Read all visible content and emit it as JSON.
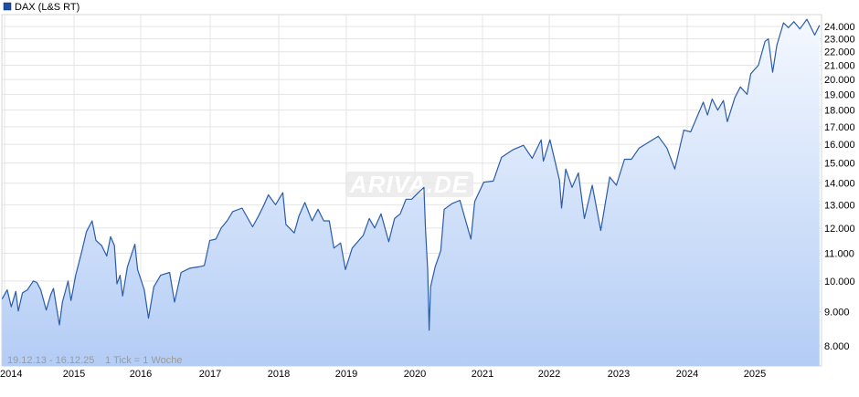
{
  "chart_data": {
    "type": "area",
    "legend": {
      "label": "DAX (L&S RT)",
      "color": "#1f4e9e",
      "placement": "top-left"
    },
    "watermark": "ARIVA.DE",
    "period_text": "19.12.13 - 16.12.25",
    "tick_text": "1 Tick = 1 Woche",
    "x_tick_labels": [
      "2014",
      "2015",
      "2016",
      "2017",
      "2018",
      "2019",
      "2020",
      "2021",
      "2022",
      "2023",
      "2024",
      "2025"
    ],
    "y_tick_labels": [
      "8.000",
      "9.000",
      "10.000",
      "11.000",
      "12.000",
      "13.000",
      "14.000",
      "15.000",
      "16.000",
      "17.000",
      "18.000",
      "19.000",
      "20.000",
      "21.000",
      "22.000",
      "23.000",
      "24.000"
    ],
    "y_scale": "log",
    "ylim": [
      7700,
      24800
    ],
    "xlim": [
      "2013-12-19",
      "2025-12-16"
    ],
    "grid": true,
    "colors": {
      "line": "#2a5caa",
      "area_top": "#f4f8ff",
      "area_bottom": "#b4cdf5",
      "grid": "#e4e4e4"
    },
    "series": [
      {
        "name": "DAX (L&S RT)",
        "points": [
          [
            "2013-12-19",
            9400
          ],
          [
            "2014-01-15",
            9700
          ],
          [
            "2014-02-05",
            9150
          ],
          [
            "2014-03-01",
            9650
          ],
          [
            "2014-03-14",
            9020
          ],
          [
            "2014-04-05",
            9600
          ],
          [
            "2014-05-01",
            9700
          ],
          [
            "2014-06-01",
            10000
          ],
          [
            "2014-06-20",
            9950
          ],
          [
            "2014-07-10",
            9700
          ],
          [
            "2014-08-08",
            9050
          ],
          [
            "2014-09-01",
            9550
          ],
          [
            "2014-09-15",
            9750
          ],
          [
            "2014-10-16",
            8600
          ],
          [
            "2014-11-01",
            9300
          ],
          [
            "2014-12-01",
            10000
          ],
          [
            "2014-12-16",
            9350
          ],
          [
            "2015-01-10",
            10200
          ],
          [
            "2015-02-10",
            11000
          ],
          [
            "2015-03-10",
            11850
          ],
          [
            "2015-04-10",
            12300
          ],
          [
            "2015-05-01",
            11500
          ],
          [
            "2015-06-01",
            11300
          ],
          [
            "2015-06-29",
            10900
          ],
          [
            "2015-07-20",
            11650
          ],
          [
            "2015-08-10",
            11300
          ],
          [
            "2015-08-24",
            9900
          ],
          [
            "2015-09-10",
            10200
          ],
          [
            "2015-09-24",
            9500
          ],
          [
            "2015-10-20",
            10500
          ],
          [
            "2015-11-30",
            11350
          ],
          [
            "2015-12-15",
            10400
          ],
          [
            "2016-01-20",
            9700
          ],
          [
            "2016-02-11",
            8800
          ],
          [
            "2016-03-10",
            9800
          ],
          [
            "2016-04-15",
            10200
          ],
          [
            "2016-06-01",
            10300
          ],
          [
            "2016-06-27",
            9300
          ],
          [
            "2016-08-01",
            10300
          ],
          [
            "2016-09-15",
            10450
          ],
          [
            "2016-11-01",
            10500
          ],
          [
            "2016-12-01",
            10550
          ],
          [
            "2016-12-30",
            11500
          ],
          [
            "2017-01-31",
            11550
          ],
          [
            "2017-03-01",
            12000
          ],
          [
            "2017-04-01",
            12300
          ],
          [
            "2017-05-01",
            12700
          ],
          [
            "2017-06-20",
            12850
          ],
          [
            "2017-08-15",
            12050
          ],
          [
            "2017-09-15",
            12500
          ],
          [
            "2017-10-15",
            13000
          ],
          [
            "2017-11-07",
            13450
          ],
          [
            "2017-12-15",
            13000
          ],
          [
            "2018-01-23",
            13550
          ],
          [
            "2018-02-09",
            12150
          ],
          [
            "2018-03-26",
            11800
          ],
          [
            "2018-04-20",
            12500
          ],
          [
            "2018-05-22",
            13100
          ],
          [
            "2018-06-30",
            12300
          ],
          [
            "2018-08-01",
            12800
          ],
          [
            "2018-09-01",
            12300
          ],
          [
            "2018-10-01",
            12300
          ],
          [
            "2018-10-26",
            11200
          ],
          [
            "2018-12-01",
            11400
          ],
          [
            "2018-12-27",
            10400
          ],
          [
            "2019-02-01",
            11200
          ],
          [
            "2019-04-01",
            11700
          ],
          [
            "2019-05-03",
            12400
          ],
          [
            "2019-06-01",
            12000
          ],
          [
            "2019-07-05",
            12600
          ],
          [
            "2019-08-15",
            11450
          ],
          [
            "2019-09-15",
            12400
          ],
          [
            "2019-10-15",
            12600
          ],
          [
            "2019-11-15",
            13250
          ],
          [
            "2019-12-15",
            13250
          ],
          [
            "2020-01-20",
            13550
          ],
          [
            "2020-02-19",
            13800
          ],
          [
            "2020-02-28",
            11900
          ],
          [
            "2020-03-10",
            10400
          ],
          [
            "2020-03-18",
            8440
          ],
          [
            "2020-03-26",
            9800
          ],
          [
            "2020-04-20",
            10500
          ],
          [
            "2020-05-20",
            11100
          ],
          [
            "2020-06-08",
            12800
          ],
          [
            "2020-07-20",
            13050
          ],
          [
            "2020-09-01",
            13200
          ],
          [
            "2020-10-30",
            11550
          ],
          [
            "2020-11-20",
            13150
          ],
          [
            "2021-01-08",
            14050
          ],
          [
            "2021-03-01",
            14100
          ],
          [
            "2021-04-15",
            15300
          ],
          [
            "2021-06-15",
            15700
          ],
          [
            "2021-08-13",
            15950
          ],
          [
            "2021-09-30",
            15250
          ],
          [
            "2021-11-18",
            16250
          ],
          [
            "2021-11-30",
            15100
          ],
          [
            "2022-01-05",
            16250
          ],
          [
            "2022-02-24",
            14150
          ],
          [
            "2022-03-07",
            12850
          ],
          [
            "2022-03-29",
            14700
          ],
          [
            "2022-05-01",
            13800
          ],
          [
            "2022-06-03",
            14500
          ],
          [
            "2022-07-05",
            12400
          ],
          [
            "2022-08-15",
            13900
          ],
          [
            "2022-09-29",
            11900
          ],
          [
            "2022-11-15",
            14300
          ],
          [
            "2022-12-20",
            13900
          ],
          [
            "2023-02-01",
            15200
          ],
          [
            "2023-03-10",
            15200
          ],
          [
            "2023-04-20",
            15800
          ],
          [
            "2023-07-31",
            16450
          ],
          [
            "2023-09-15",
            15800
          ],
          [
            "2023-10-27",
            14700
          ],
          [
            "2023-12-14",
            16800
          ],
          [
            "2024-01-20",
            16700
          ],
          [
            "2024-03-28",
            18500
          ],
          [
            "2024-04-20",
            17700
          ],
          [
            "2024-05-15",
            18700
          ],
          [
            "2024-06-14",
            18000
          ],
          [
            "2024-07-15",
            18600
          ],
          [
            "2024-08-05",
            17300
          ],
          [
            "2024-09-15",
            18800
          ],
          [
            "2024-10-15",
            19500
          ],
          [
            "2024-11-20",
            19000
          ],
          [
            "2024-12-10",
            20400
          ],
          [
            "2025-01-20",
            21000
          ],
          [
            "2025-02-25",
            22800
          ],
          [
            "2025-03-15",
            23000
          ],
          [
            "2025-04-07",
            20500
          ],
          [
            "2025-04-30",
            22500
          ],
          [
            "2025-06-05",
            24300
          ],
          [
            "2025-07-01",
            23900
          ],
          [
            "2025-07-31",
            24400
          ],
          [
            "2025-09-01",
            23800
          ],
          [
            "2025-10-09",
            24600
          ],
          [
            "2025-11-20",
            23300
          ],
          [
            "2025-12-16",
            24100
          ]
        ]
      }
    ]
  }
}
